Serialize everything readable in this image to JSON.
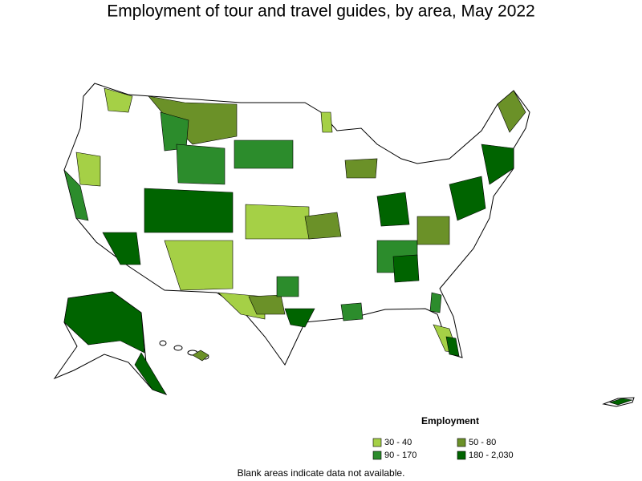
{
  "title": "Employment of tour and travel guides, by area, May 2022",
  "legend": {
    "title": "Employment",
    "items": [
      {
        "label": "30 - 40",
        "color": "#a5d046"
      },
      {
        "label": "50 - 80",
        "color": "#6b9128"
      },
      {
        "label": "90 - 170",
        "color": "#2c8c2c"
      },
      {
        "label": "180 - 2,030",
        "color": "#006400"
      }
    ]
  },
  "note": "Blank areas indicate data not available."
}
